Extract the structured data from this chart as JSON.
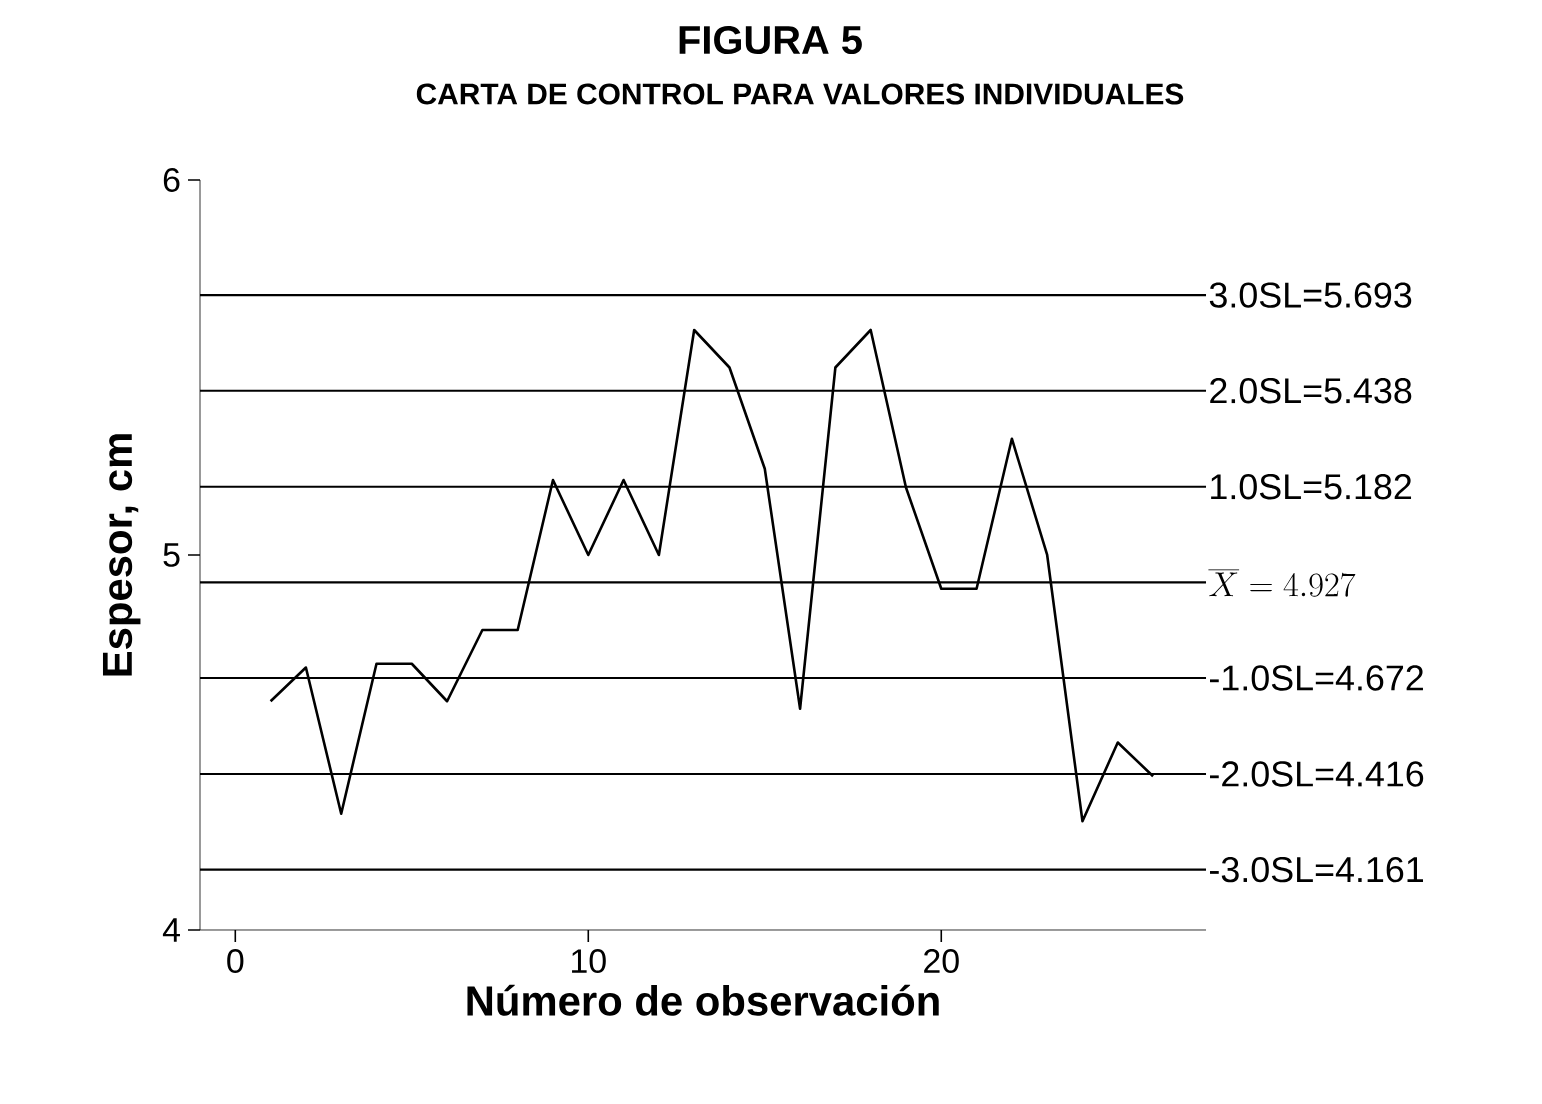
{
  "chart_data": {
    "type": "line",
    "title": "FIGURA 5",
    "subtitle": "CARTA DE CONTROL PARA VALORES INDIVIDUALES",
    "xlabel": "Número de observación",
    "ylabel": "Espesor, cm",
    "x": [
      1,
      2,
      3,
      4,
      5,
      6,
      7,
      8,
      9,
      10,
      11,
      12,
      13,
      14,
      15,
      16,
      17,
      18,
      19,
      20,
      21,
      22,
      23,
      24,
      25,
      26
    ],
    "series": [
      {
        "color": "#000000",
        "values": [
          4.61,
          4.7,
          4.31,
          4.71,
          4.71,
          4.61,
          4.8,
          4.8,
          5.2,
          5.0,
          5.2,
          5.0,
          5.6,
          5.5,
          5.23,
          4.59,
          5.5,
          5.6,
          5.18,
          4.91,
          4.91,
          5.31,
          5.0,
          4.29,
          4.5,
          4.41
        ]
      }
    ],
    "xlim": [
      -1,
      27.5
    ],
    "ylim": [
      4,
      6
    ],
    "xticks": [
      0,
      10,
      20
    ],
    "yticks": [
      4,
      5,
      6
    ],
    "marker": "none",
    "line_style": "solid",
    "grid": false,
    "ref_lines": [
      {
        "axis": "y",
        "value": 5.693,
        "label": "3.0SL=5.693"
      },
      {
        "axis": "y",
        "value": 5.438,
        "label": "2.0SL=5.438"
      },
      {
        "axis": "y",
        "value": 5.182,
        "label": "1.0SL=5.182"
      },
      {
        "axis": "y",
        "value": 4.927,
        "label": "\\overline{X}=4.927"
      },
      {
        "axis": "y",
        "value": 4.672,
        "label": "-1.0SL=4.672"
      },
      {
        "axis": "y",
        "value": 4.416,
        "label": "-2.0SL=4.416"
      },
      {
        "axis": "y",
        "value": 4.161,
        "label": "-3.0SL=4.161"
      }
    ]
  }
}
